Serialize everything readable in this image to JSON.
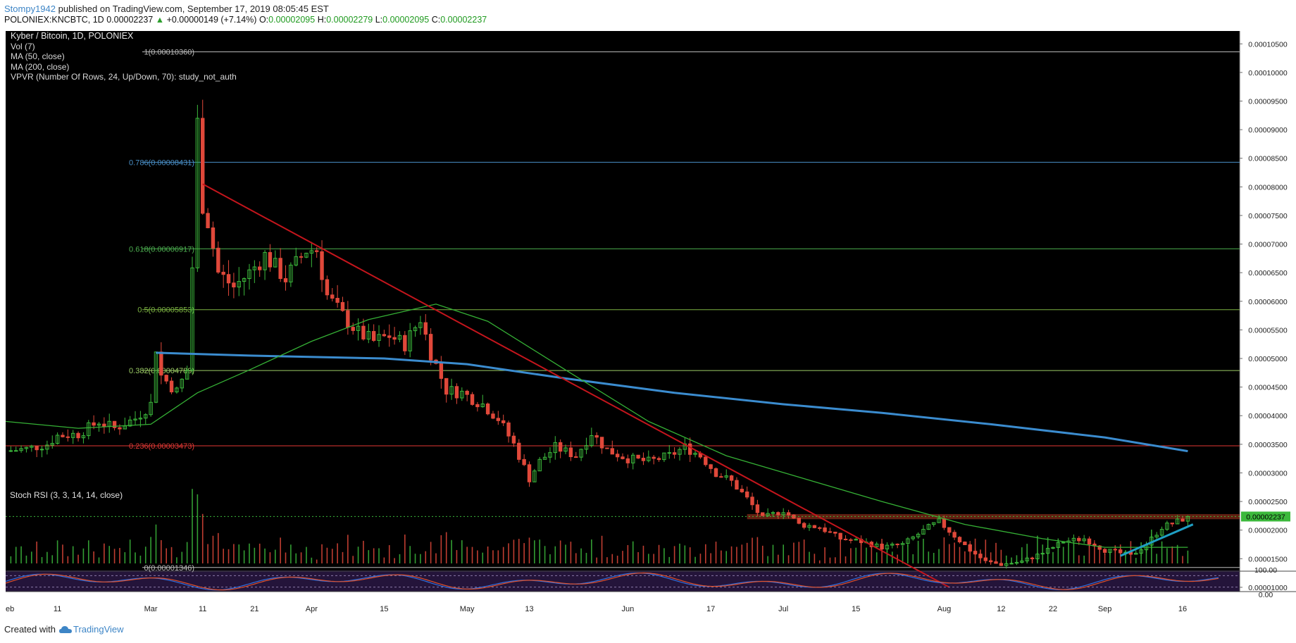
{
  "header": {
    "user": "Stompy1942",
    "published_text": " published on TradingView.com, September 17, 2019 08:05:45 EST",
    "symbol_line": "POLONIEX:KNCBTC, 1D",
    "last": "0.00002237",
    "change": "+0.00000149 (+7.14%)",
    "o_label": "O:",
    "o_value": "0.00002095",
    "h_label": "H:",
    "h_value": "0.00002279",
    "l_label": "L:",
    "l_value": "0.00002095",
    "c_label": "C:",
    "c_value": "0.00002237"
  },
  "legend": {
    "title": "Kyber / Bitcoin, 1D, POLONIEX",
    "vol": "Vol (7)",
    "ma50": "MA (50, close)",
    "ma200": "MA (200, close)",
    "vpvr": "VPVR (Number Of Rows, 24, Up/Down, 70): study_not_auth"
  },
  "rsi_label": "Stoch RSI (3, 3, 14, 14, close)",
  "rsi_axis": [
    "100.00",
    "0.00"
  ],
  "price_badge": "0.00002237",
  "footer": {
    "created_with": "Created with",
    "brand": "TradingView"
  },
  "colors": {
    "background": "#000000",
    "up_candle": "#3cb93c",
    "down_candle": "#e0483a",
    "ma50": "#35b035",
    "ma200": "#3b8ccf",
    "trendline": "#c4151c",
    "support_line": "#1f9fc4",
    "rsi_k": "#2f6fe0",
    "rsi_d": "#e0502a"
  },
  "chart_data": {
    "type": "candlestick",
    "title": "Kyber / Bitcoin, 1D, POLONIEX",
    "x_ticks": [
      "eb",
      "11",
      "Mar",
      "11",
      "21",
      "Apr",
      "15",
      "May",
      "13",
      "Jun",
      "17",
      "Jul",
      "15",
      "Aug",
      "12",
      "22",
      "Sep",
      "16"
    ],
    "y_ticks": [
      "0.00010500",
      "0.00010000",
      "0.00009500",
      "0.00009000",
      "0.00008500",
      "0.00008000",
      "0.00007500",
      "0.00007000",
      "0.00006500",
      "0.00006000",
      "0.00005500",
      "0.00005000",
      "0.00004500",
      "0.00004000",
      "0.00003500",
      "0.00003000",
      "0.00002500",
      "0.00002000",
      "0.00001500",
      "0.00001000"
    ],
    "ylim": [
      9.25e-06,
      0.00010725
    ],
    "fib_levels": [
      {
        "ratio": "1",
        "value": 0.0001036,
        "label": "1(0.00010360)",
        "color": "#bdbdbd"
      },
      {
        "ratio": "0.786",
        "value": 8.431e-05,
        "label": "0.786(0.00008431)",
        "color": "#4a90c8"
      },
      {
        "ratio": "0.618",
        "value": 6.917e-05,
        "label": "0.618(0.00006917)",
        "color": "#4caf50"
      },
      {
        "ratio": "0.5",
        "value": 5.853e-05,
        "label": "0.5(0.00005853)",
        "color": "#7cb342"
      },
      {
        "ratio": "0.382",
        "value": 4.789e-05,
        "label": "0.382(0.00004789)",
        "color": "#9ccc65"
      },
      {
        "ratio": "0.236",
        "value": 3.473e-05,
        "label": "0.236(0.00003473)",
        "color": "#e53935"
      },
      {
        "ratio": "0",
        "value": 1.346e-05,
        "label": "0(0.00001346)",
        "color": "#bdbdbd"
      }
    ],
    "last_price": 2.237e-05,
    "resistance_zone": [
      2.19e-05,
      2.28e-05
    ],
    "close_path": [
      [
        "2019-02-01",
        3.38e-05
      ],
      [
        "2019-02-05",
        3.42e-05
      ],
      [
        "2019-02-09",
        3.5e-05
      ],
      [
        "2019-02-11",
        3.65e-05
      ],
      [
        "2019-02-15",
        3.68e-05
      ],
      [
        "2019-02-19",
        3.9e-05
      ],
      [
        "2019-02-22",
        3.78e-05
      ],
      [
        "2019-02-26",
        3.95e-05
      ],
      [
        "2019-03-01",
        4.2e-05
      ],
      [
        "2019-03-02",
        5.2e-05
      ],
      [
        "2019-03-03",
        4.7e-05
      ],
      [
        "2019-03-06",
        4.42e-05
      ],
      [
        "2019-03-08",
        4.8e-05
      ],
      [
        "2019-03-09",
        6.6e-05
      ],
      [
        "2019-03-10",
        9.1e-05
      ],
      [
        "2019-03-11",
        7.7e-05
      ],
      [
        "2019-03-12",
        7.4e-05
      ],
      [
        "2019-03-14",
        6.5e-05
      ],
      [
        "2019-03-17",
        6.25e-05
      ],
      [
        "2019-03-20",
        6.5e-05
      ],
      [
        "2019-03-23",
        6.8e-05
      ],
      [
        "2019-03-27",
        6.4e-05
      ],
      [
        "2019-03-31",
        6.9e-05
      ],
      [
        "2019-04-02",
        6.9e-05
      ],
      [
        "2019-04-04",
        6.1e-05
      ],
      [
        "2019-04-07",
        5.75e-05
      ],
      [
        "2019-04-10",
        5.45e-05
      ],
      [
        "2019-04-13",
        5.3e-05
      ],
      [
        "2019-04-16",
        5.4e-05
      ],
      [
        "2019-04-19",
        5.25e-05
      ],
      [
        "2019-04-22",
        5.7e-05
      ],
      [
        "2019-04-24",
        5.1e-05
      ],
      [
        "2019-04-27",
        4.45e-05
      ],
      [
        "2019-04-30",
        4.4e-05
      ],
      [
        "2019-05-04",
        4.2e-05
      ],
      [
        "2019-05-07",
        3.95e-05
      ],
      [
        "2019-05-10",
        3.5e-05
      ],
      [
        "2019-05-13",
        2.9e-05
      ],
      [
        "2019-05-15",
        3.2e-05
      ],
      [
        "2019-05-18",
        3.45e-05
      ],
      [
        "2019-05-22",
        3.3e-05
      ],
      [
        "2019-05-25",
        3.7e-05
      ],
      [
        "2019-05-28",
        3.4e-05
      ],
      [
        "2019-06-01",
        3.25e-05
      ],
      [
        "2019-06-05",
        3.2e-05
      ],
      [
        "2019-06-09",
        3.3e-05
      ],
      [
        "2019-06-12",
        3.45e-05
      ],
      [
        "2019-06-15",
        3.3e-05
      ],
      [
        "2019-06-18",
        3e-05
      ],
      [
        "2019-06-21",
        2.85e-05
      ],
      [
        "2019-06-24",
        2.55e-05
      ],
      [
        "2019-06-27",
        2.2e-05
      ],
      [
        "2019-07-01",
        2.35e-05
      ],
      [
        "2019-07-04",
        2.1e-05
      ],
      [
        "2019-07-08",
        2.05e-05
      ],
      [
        "2019-07-12",
        1.85e-05
      ],
      [
        "2019-07-16",
        1.8e-05
      ],
      [
        "2019-07-20",
        1.7e-05
      ],
      [
        "2019-07-24",
        1.75e-05
      ],
      [
        "2019-07-29",
        2.05e-05
      ],
      [
        "2019-07-31",
        2.15e-05
      ],
      [
        "2019-08-03",
        1.9e-05
      ],
      [
        "2019-08-06",
        1.65e-05
      ],
      [
        "2019-08-09",
        1.45e-05
      ],
      [
        "2019-08-12",
        1.4e-05
      ],
      [
        "2019-08-16",
        1.45e-05
      ],
      [
        "2019-08-20",
        1.6e-05
      ],
      [
        "2019-08-24",
        1.8e-05
      ],
      [
        "2019-08-28",
        1.85e-05
      ],
      [
        "2019-09-01",
        1.65e-05
      ],
      [
        "2019-09-04",
        1.6e-05
      ],
      [
        "2019-09-06",
        1.55e-05
      ],
      [
        "2019-09-09",
        1.75e-05
      ],
      [
        "2019-09-12",
        2.05e-05
      ],
      [
        "2019-09-15",
        2.15e-05
      ],
      [
        "2019-09-17",
        2.237e-05
      ]
    ],
    "ma50": [
      [
        "2019-02-01",
        3.9e-05
      ],
      [
        "2019-02-15",
        3.78e-05
      ],
      [
        "2019-03-01",
        3.85e-05
      ],
      [
        "2019-03-10",
        4.4e-05
      ],
      [
        "2019-03-20",
        4.8e-05
      ],
      [
        "2019-04-01",
        5.3e-05
      ],
      [
        "2019-04-12",
        5.68e-05
      ],
      [
        "2019-04-25",
        5.95e-05
      ],
      [
        "2019-05-05",
        5.65e-05
      ],
      [
        "2019-05-20",
        4.8e-05
      ],
      [
        "2019-06-05",
        3.9e-05
      ],
      [
        "2019-06-20",
        3.3e-05
      ],
      [
        "2019-07-05",
        2.9e-05
      ],
      [
        "2019-07-20",
        2.5e-05
      ],
      [
        "2019-08-05",
        2.1e-05
      ],
      [
        "2019-08-20",
        1.85e-05
      ],
      [
        "2019-09-01",
        1.7e-05
      ],
      [
        "2019-09-17",
        1.7e-05
      ]
    ],
    "ma200": [
      [
        "2019-03-02",
        5.1e-05
      ],
      [
        "2019-03-20",
        5.05e-05
      ],
      [
        "2019-04-15",
        5e-05
      ],
      [
        "2019-05-01",
        4.9e-05
      ],
      [
        "2019-05-20",
        4.65e-05
      ],
      [
        "2019-06-10",
        4.4e-05
      ],
      [
        "2019-07-01",
        4.2e-05
      ],
      [
        "2019-07-20",
        4.05e-05
      ],
      [
        "2019-08-10",
        3.85e-05
      ],
      [
        "2019-09-01",
        3.62e-05
      ],
      [
        "2019-09-17",
        3.38e-05
      ]
    ],
    "trendline": [
      [
        "2019-03-11",
        8.05e-05
      ],
      [
        "2019-08-02",
        1e-05
      ]
    ],
    "support_line": [
      [
        "2019-09-04",
        1.55e-05
      ],
      [
        "2019-09-18",
        2.1e-05
      ]
    ],
    "rsi": {
      "ylim": [
        0,
        100
      ],
      "levels": [
        80,
        20
      ]
    }
  }
}
